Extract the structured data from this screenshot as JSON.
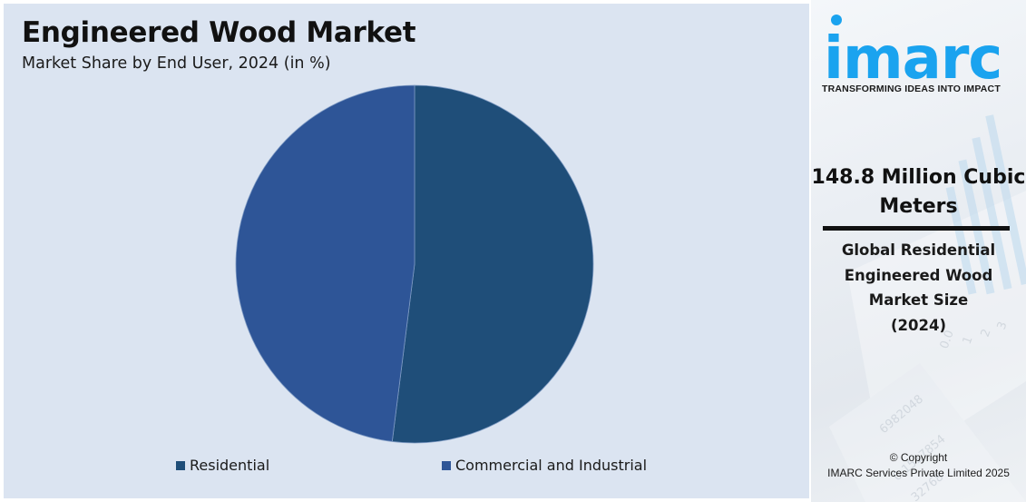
{
  "chart": {
    "title": "Engineered Wood Market",
    "subtitle": "Market Share by End User, 2024 (in %)"
  },
  "legend": {
    "items": [
      {
        "label": "Residential",
        "color": "#1f4e79"
      },
      {
        "label": "Commercial and Industrial",
        "color": "#2e5597"
      }
    ]
  },
  "side_panel": {
    "brand": "imarc",
    "brand_color": "#1aa3ef",
    "tagline": "TRANSFORMING IDEAS INTO IMPACT",
    "metric_line1": "148.8 Million Cubic",
    "metric_line2": "Meters",
    "metric_label_lines": [
      "Global Residential",
      "Engineered Wood",
      "Market Size",
      "(2024)"
    ],
    "copyright_line1": "© Copyright",
    "copyright_line2": "IMARC Services Private Limited 2025"
  },
  "chart_data": {
    "type": "pie",
    "title": "Engineered Wood Market",
    "subtitle": "Market Share by End User, 2024 (in %)",
    "categories": [
      "Residential",
      "Commercial and Industrial"
    ],
    "values": [
      52,
      48
    ],
    "colors": [
      "#1f4e79",
      "#2e5597"
    ],
    "start_angle": "12 o'clock, clockwise",
    "data_labels": false,
    "legend_position": "bottom"
  }
}
